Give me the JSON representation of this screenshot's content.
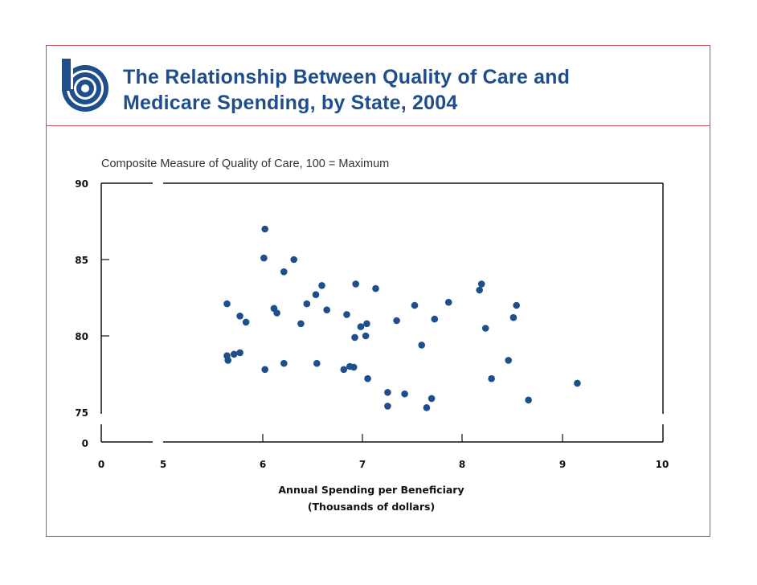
{
  "header": {
    "title_line1": "The Relationship Between Quality of Care and",
    "title_line2": "Medicare Spending, by State, 2004",
    "logo": "cbo-logo-icon"
  },
  "colors": {
    "title": "#1f4e8c",
    "points": "#1f4e8c",
    "frame": "#c0504d",
    "axis": "#111111"
  },
  "chart_data": {
    "type": "scatter",
    "title": "The Relationship Between Quality of Care and Medicare Spending, by State, 2004",
    "ylabel": "Composite Measure of Quality of Care, 100 = Maximum",
    "xlabel_line1": "Annual Spending per Beneficiary",
    "xlabel_line2": "(Thousands of dollars)",
    "xlim": [
      0,
      10
    ],
    "x_axis_break": true,
    "x_ticks": [
      "0",
      "5",
      "6",
      "7",
      "8",
      "9",
      "10"
    ],
    "ylim": [
      0,
      90
    ],
    "y_axis_break": true,
    "y_ticks": [
      "0",
      "75",
      "80",
      "85",
      "90"
    ],
    "grid": false,
    "points": [
      {
        "x": 5.64,
        "y": 82.1
      },
      {
        "x": 5.64,
        "y": 78.7
      },
      {
        "x": 5.65,
        "y": 78.4
      },
      {
        "x": 5.71,
        "y": 78.8
      },
      {
        "x": 5.77,
        "y": 78.9
      },
      {
        "x": 5.77,
        "y": 81.3
      },
      {
        "x": 5.83,
        "y": 80.9
      },
      {
        "x": 6.02,
        "y": 87.0
      },
      {
        "x": 6.01,
        "y": 85.1
      },
      {
        "x": 6.02,
        "y": 77.8
      },
      {
        "x": 6.11,
        "y": 81.8
      },
      {
        "x": 6.14,
        "y": 81.5
      },
      {
        "x": 6.21,
        "y": 84.2
      },
      {
        "x": 6.21,
        "y": 78.2
      },
      {
        "x": 6.31,
        "y": 85.0
      },
      {
        "x": 6.38,
        "y": 80.8
      },
      {
        "x": 6.44,
        "y": 82.1
      },
      {
        "x": 6.53,
        "y": 82.7
      },
      {
        "x": 6.54,
        "y": 78.2
      },
      {
        "x": 6.59,
        "y": 83.3
      },
      {
        "x": 6.64,
        "y": 81.7
      },
      {
        "x": 6.81,
        "y": 77.8
      },
      {
        "x": 6.84,
        "y": 81.4
      },
      {
        "x": 6.87,
        "y": 78.0
      },
      {
        "x": 6.91,
        "y": 77.95
      },
      {
        "x": 6.92,
        "y": 79.9
      },
      {
        "x": 6.93,
        "y": 83.4
      },
      {
        "x": 6.98,
        "y": 80.6
      },
      {
        "x": 7.03,
        "y": 80.0
      },
      {
        "x": 7.04,
        "y": 80.8
      },
      {
        "x": 7.05,
        "y": 77.2
      },
      {
        "x": 7.13,
        "y": 83.1
      },
      {
        "x": 7.25,
        "y": 76.3
      },
      {
        "x": 7.25,
        "y": 75.4
      },
      {
        "x": 7.34,
        "y": 81.0
      },
      {
        "x": 7.42,
        "y": 76.2
      },
      {
        "x": 7.52,
        "y": 82.0
      },
      {
        "x": 7.59,
        "y": 79.4
      },
      {
        "x": 7.64,
        "y": 75.3
      },
      {
        "x": 7.69,
        "y": 75.9
      },
      {
        "x": 7.72,
        "y": 81.1
      },
      {
        "x": 7.86,
        "y": 82.2
      },
      {
        "x": 8.17,
        "y": 83.0
      },
      {
        "x": 8.19,
        "y": 83.4
      },
      {
        "x": 8.23,
        "y": 80.5
      },
      {
        "x": 8.29,
        "y": 77.2
      },
      {
        "x": 8.46,
        "y": 78.4
      },
      {
        "x": 8.51,
        "y": 81.2
      },
      {
        "x": 8.54,
        "y": 82.0
      },
      {
        "x": 8.66,
        "y": 75.8
      },
      {
        "x": 9.15,
        "y": 76.9
      }
    ]
  }
}
